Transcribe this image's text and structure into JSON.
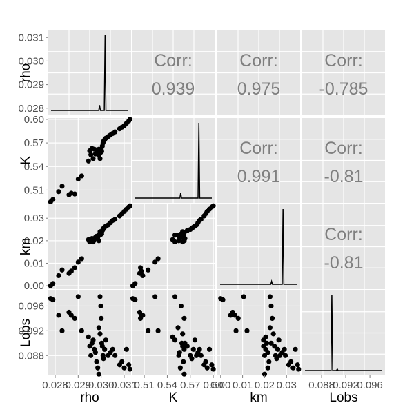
{
  "chart_data": {
    "type": "scatter",
    "variables": [
      "rho",
      "K",
      "km",
      "Lobs"
    ],
    "axis_labels": [
      "rho",
      "K",
      "km",
      "Lobs"
    ],
    "x_tick_labels": [
      [
        "0.028",
        "0.029",
        "0.030",
        "0.031"
      ],
      [
        "0.51",
        "0.54",
        "0.57",
        "0.60"
      ],
      [
        "0.00",
        "0.01",
        "0.02",
        "0.03"
      ],
      [
        "0.088",
        "0.092",
        "0.096"
      ]
    ],
    "y_tick_labels": [
      [
        "0.028",
        "0.029",
        "0.030",
        "0.031"
      ],
      [
        "0.51",
        "0.54",
        "0.57",
        "0.60"
      ],
      [
        "0.00",
        "0.01",
        "0.02",
        "0.03"
      ],
      [
        "0.088",
        "0.092",
        "0.096"
      ]
    ],
    "correlation_label": "Corr:",
    "correlations": [
      {
        "row": 0,
        "col": 1,
        "value": "0.939"
      },
      {
        "row": 0,
        "col": 2,
        "value": "0.975"
      },
      {
        "row": 0,
        "col": 3,
        "value": "-0.785"
      },
      {
        "row": 1,
        "col": 2,
        "value": "0.991"
      },
      {
        "row": 1,
        "col": 3,
        "value": "-0.81"
      },
      {
        "row": 2,
        "col": 3,
        "value": "-0.81"
      }
    ],
    "ranges": {
      "rho": [
        0.0277,
        0.0313
      ],
      "K": [
        0.4937,
        0.6017
      ],
      "km": [
        -0.0015,
        0.0362
      ],
      "Lobs": [
        0.0848,
        0.0985
      ]
    },
    "ticks": {
      "rho": [
        0.028,
        0.029,
        0.03,
        0.031
      ],
      "K": [
        0.51,
        0.54,
        0.57,
        0.6
      ],
      "km": [
        0.0,
        0.01,
        0.02,
        0.03
      ],
      "Lobs": [
        0.088,
        0.092,
        0.096
      ]
    },
    "density_peaks": {
      "rho": [
        {
          "x": 0.02993,
          "h": 0.07
        },
        {
          "x": 0.03017,
          "h": 1.0
        }
      ],
      "K": [
        {
          "x": 0.5575,
          "h": 0.07
        },
        {
          "x": 0.5812,
          "h": 1.0
        }
      ],
      "km": [
        {
          "x": 0.0232,
          "h": 0.04
        },
        {
          "x": 0.0284,
          "h": 1.0
        }
      ],
      "Lobs": [
        {
          "x": 0.0897,
          "h": 1.0
        },
        {
          "x": 0.0906,
          "h": 0.02
        }
      ]
    },
    "points": [
      {
        "rho": 0.0278,
        "K": 0.495,
        "km": 0.0,
        "Lobs": 0.0972
      },
      {
        "rho": 0.0279,
        "K": 0.498,
        "km": 0.001,
        "Lobs": 0.097
      },
      {
        "rho": 0.02815,
        "K": 0.508,
        "km": 0.0045,
        "Lobs": 0.0945
      },
      {
        "rho": 0.0283,
        "K": 0.515,
        "km": 0.007,
        "Lobs": 0.092
      },
      {
        "rho": 0.0286,
        "K": 0.504,
        "km": 0.0055,
        "Lobs": 0.095
      },
      {
        "rho": 0.0287,
        "K": 0.506,
        "km": 0.0065,
        "Lobs": 0.0945
      },
      {
        "rho": 0.02885,
        "K": 0.505,
        "km": 0.008,
        "Lobs": 0.094
      },
      {
        "rho": 0.029,
        "K": 0.524,
        "km": 0.0105,
        "Lobs": 0.0975
      },
      {
        "rho": 0.02915,
        "K": 0.528,
        "km": 0.012,
        "Lobs": 0.092
      },
      {
        "rho": 0.02945,
        "K": 0.547,
        "km": 0.0205,
        "Lobs": 0.091
      },
      {
        "rho": 0.0295,
        "K": 0.56,
        "km": 0.0195,
        "Lobs": 0.0895
      },
      {
        "rho": 0.02955,
        "K": 0.555,
        "km": 0.02,
        "Lobs": 0.088
      },
      {
        "rho": 0.0296,
        "K": 0.563,
        "km": 0.021,
        "Lobs": 0.09
      },
      {
        "rho": 0.02965,
        "K": 0.55,
        "km": 0.0195,
        "Lobs": 0.0905
      },
      {
        "rho": 0.0297,
        "K": 0.562,
        "km": 0.0205,
        "Lobs": 0.089
      },
      {
        "rho": 0.02975,
        "K": 0.556,
        "km": 0.0215,
        "Lobs": 0.0885
      },
      {
        "rho": 0.0298,
        "K": 0.561,
        "km": 0.022,
        "Lobs": 0.087
      },
      {
        "rho": 0.02985,
        "K": 0.557,
        "km": 0.0215,
        "Lobs": 0.086
      },
      {
        "rho": 0.0299,
        "K": 0.562,
        "km": 0.02,
        "Lobs": 0.085
      },
      {
        "rho": 0.02995,
        "K": 0.55,
        "km": 0.0225,
        "Lobs": 0.0975
      },
      {
        "rho": 0.02998,
        "K": 0.558,
        "km": 0.023,
        "Lobs": 0.096
      },
      {
        "rho": 0.03,
        "K": 0.562,
        "km": 0.0235,
        "Lobs": 0.094
      },
      {
        "rho": 0.0299,
        "K": 0.554,
        "km": 0.0225,
        "Lobs": 0.0925
      },
      {
        "rho": 0.02995,
        "K": 0.56,
        "km": 0.024,
        "Lobs": 0.0915
      },
      {
        "rho": 0.03002,
        "K": 0.559,
        "km": 0.023,
        "Lobs": 0.09
      },
      {
        "rho": 0.03005,
        "K": 0.566,
        "km": 0.0245,
        "Lobs": 0.0895
      },
      {
        "rho": 0.03008,
        "K": 0.57,
        "km": 0.025,
        "Lobs": 0.088
      },
      {
        "rho": 0.0301,
        "K": 0.572,
        "km": 0.0255,
        "Lobs": 0.0875
      },
      {
        "rho": 0.03015,
        "K": 0.574,
        "km": 0.026,
        "Lobs": 0.089
      },
      {
        "rho": 0.0302,
        "K": 0.576,
        "km": 0.0265,
        "Lobs": 0.0905
      },
      {
        "rho": 0.0303,
        "K": 0.578,
        "km": 0.027,
        "Lobs": 0.088
      },
      {
        "rho": 0.0304,
        "K": 0.58,
        "km": 0.028,
        "Lobs": 0.0885
      },
      {
        "rho": 0.0305,
        "K": 0.582,
        "km": 0.029,
        "Lobs": 0.089
      },
      {
        "rho": 0.0306,
        "K": 0.584,
        "km": 0.0295,
        "Lobs": 0.088
      },
      {
        "rho": 0.0308,
        "K": 0.588,
        "km": 0.031,
        "Lobs": 0.0865
      },
      {
        "rho": 0.0309,
        "K": 0.59,
        "km": 0.032,
        "Lobs": 0.087
      },
      {
        "rho": 0.031,
        "K": 0.592,
        "km": 0.033,
        "Lobs": 0.086
      },
      {
        "rho": 0.0311,
        "K": 0.595,
        "km": 0.034,
        "Lobs": 0.089
      },
      {
        "rho": 0.0312,
        "K": 0.598,
        "km": 0.035,
        "Lobs": 0.0865
      },
      {
        "rho": 0.03125,
        "K": 0.6,
        "km": 0.0355,
        "Lobs": 0.0858
      }
    ],
    "grid": true,
    "background": "#e5e5e5",
    "gridline_color": "#ffffff",
    "point_color": "#000000",
    "text_color": "#7f7f7f"
  }
}
